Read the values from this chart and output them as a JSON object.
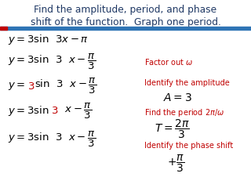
{
  "title_line1": "Find the amplitude, period, and phase",
  "title_line2": "shift of the function.  Graph one period.",
  "title_color": "#1F3864",
  "bg_color": "#FFFFFF",
  "divider_color": "#2E74B5"
}
